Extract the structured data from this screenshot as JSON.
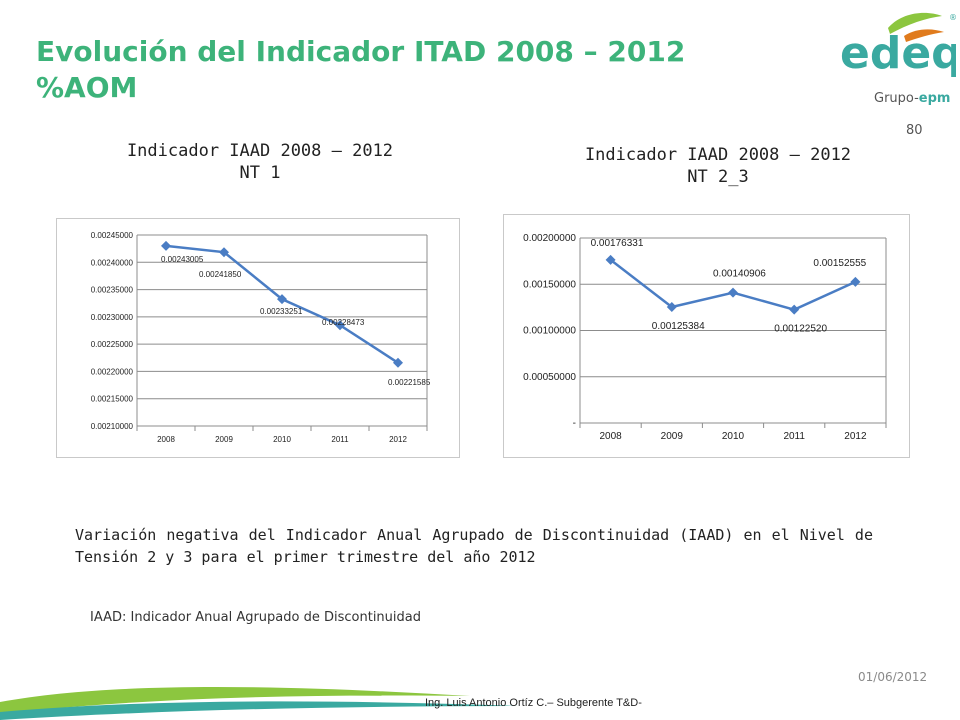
{
  "slide": {
    "title_line1": "Evolución del Indicador ITAD 2008 – 2012",
    "title_line2": "%AOM",
    "page_number": "80",
    "description": "Variación negativa del Indicador Anual Agrupado de Discontinuidad (IAAD) en el Nivel de Tensión 2 y 3 para el primer trimestre del año 2012",
    "footnote": "IAAD: Indicador Anual Agrupado de Discontinuidad",
    "date": "01/06/2012",
    "author": "Ing. Luis Antonio Ortíz C.– Subgerente T&D-"
  },
  "logo": {
    "text": "edeq",
    "registered": "®",
    "group_prefix": "Grupo-",
    "group_name": "epm",
    "colors": {
      "primary": "#3aa9a0",
      "leaf_green": "#8cc63f",
      "accent": "#e07b1d"
    }
  },
  "colors": {
    "title": "#3db37a",
    "series": "#4a7dc4",
    "grid": "#8c8c8c"
  },
  "chart_data": [
    {
      "type": "line",
      "title_line1": "Indicador IAAD 2008 – 2012",
      "title_line2": "NT 1",
      "categories": [
        "2008",
        "2009",
        "2010",
        "2011",
        "2012"
      ],
      "values": [
        0.00243005,
        0.0024185,
        0.00233251,
        0.00228473,
        0.00221585
      ],
      "data_labels": [
        "0.00243005",
        "0.00241850",
        "0.00233251",
        "0.00228473",
        "0.00221585"
      ],
      "y_ticks": [
        "0.00210000",
        "0.00215000",
        "0.00220000",
        "0.00225000",
        "0.00230000",
        "0.00235000",
        "0.00240000",
        "0.00245000"
      ],
      "ylim": [
        0.0021,
        0.00245
      ],
      "grid": true,
      "legend": "none"
    },
    {
      "type": "line",
      "title_line1": "Indicador IAAD 2008 – 2012",
      "title_line2": "NT 2_3",
      "categories": [
        "2008",
        "2009",
        "2010",
        "2011",
        "2012"
      ],
      "values": [
        0.00176331,
        0.00125384,
        0.00140906,
        0.0012252,
        0.00152555
      ],
      "data_labels": [
        "0.00176331",
        "0.00125384",
        "0.00140906",
        "0.00122520",
        "0.00152555"
      ],
      "y_ticks": [
        "-",
        "0.00050000",
        "0.00100000",
        "0.00150000",
        "0.00200000"
      ],
      "ylim": [
        0,
        0.002
      ],
      "grid": true,
      "legend": "none"
    }
  ]
}
